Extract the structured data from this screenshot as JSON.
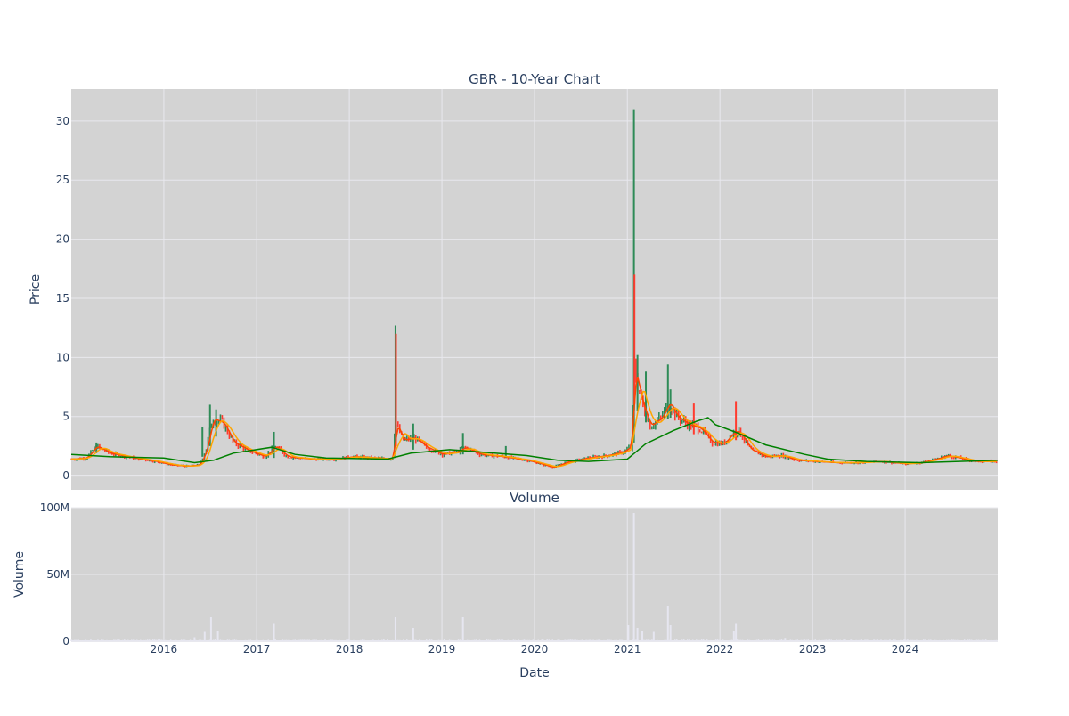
{
  "chart_data": [
    {
      "type": "candlestick",
      "title": "GBR - 10-Year Chart",
      "ylabel": "Price",
      "xlabel": "",
      "xlim": [
        "2015-01-01",
        "2024-12-31"
      ],
      "ylim": [
        -1.2,
        32.7
      ],
      "yticks": [
        0,
        5,
        10,
        15,
        20,
        25,
        30
      ],
      "grid": true,
      "colors": {
        "up": "#2e8b57",
        "down": "#ff3b2f",
        "ma_fast": "#ff4500",
        "ma_mid": "#ffa500",
        "ma_slow": "#008000",
        "background": "#d3d3d3",
        "grid": "#e8e8ee"
      },
      "series": [
        {
          "price_path": [
            [
              "2015-01-01",
              1.4
            ],
            [
              "2015-03-01",
              1.5
            ],
            [
              "2015-04-10",
              2.5
            ],
            [
              "2015-06-01",
              1.9
            ],
            [
              "2015-09-01",
              1.5
            ],
            [
              "2015-12-01",
              1.2
            ],
            [
              "2016-02-01",
              0.9
            ],
            [
              "2016-04-01",
              0.8
            ],
            [
              "2016-05-20",
              0.9
            ],
            [
              "2016-06-15",
              2.2
            ],
            [
              "2016-07-10",
              4.8
            ],
            [
              "2016-08-20",
              4.5
            ],
            [
              "2016-10-01",
              2.8
            ],
            [
              "2016-12-01",
              2.1
            ],
            [
              "2017-02-01",
              1.6
            ],
            [
              "2017-03-15",
              2.5
            ],
            [
              "2017-05-01",
              1.6
            ],
            [
              "2017-08-01",
              1.4
            ],
            [
              "2017-11-01",
              1.4
            ],
            [
              "2018-01-15",
              1.6
            ],
            [
              "2018-04-01",
              1.5
            ],
            [
              "2018-06-20",
              1.4
            ],
            [
              "2018-07-01",
              4.5
            ],
            [
              "2018-08-01",
              3.0
            ],
            [
              "2018-09-15",
              3.2
            ],
            [
              "2018-11-01",
              2.4
            ],
            [
              "2019-01-01",
              1.8
            ],
            [
              "2019-03-01",
              2.0
            ],
            [
              "2019-04-01",
              2.4
            ],
            [
              "2019-06-01",
              1.8
            ],
            [
              "2019-09-01",
              1.6
            ],
            [
              "2019-12-01",
              1.3
            ],
            [
              "2020-03-15",
              0.7
            ],
            [
              "2020-05-01",
              1.1
            ],
            [
              "2020-08-01",
              1.5
            ],
            [
              "2020-10-15",
              1.7
            ],
            [
              "2020-12-15",
              2.0
            ],
            [
              "2021-01-15",
              2.5
            ],
            [
              "2021-01-28",
              9.0
            ],
            [
              "2021-02-10",
              7.8
            ],
            [
              "2021-03-01",
              6.0
            ],
            [
              "2021-04-01",
              4.2
            ],
            [
              "2021-05-15",
              4.9
            ],
            [
              "2021-06-15",
              6.2
            ],
            [
              "2021-07-15",
              5.0
            ],
            [
              "2021-09-01",
              4.3
            ],
            [
              "2021-10-15",
              4.0
            ],
            [
              "2021-12-01",
              2.8
            ],
            [
              "2022-01-15",
              2.7
            ],
            [
              "2022-02-20",
              3.6
            ],
            [
              "2022-03-15",
              3.8
            ],
            [
              "2022-05-01",
              2.2
            ],
            [
              "2022-07-01",
              1.6
            ],
            [
              "2022-09-01",
              1.7
            ],
            [
              "2022-11-01",
              1.3
            ],
            [
              "2023-01-15",
              1.2
            ],
            [
              "2023-04-01",
              1.1
            ],
            [
              "2023-07-01",
              1.1
            ],
            [
              "2023-10-01",
              1.2
            ],
            [
              "2024-01-01",
              1.0
            ],
            [
              "2024-03-01",
              1.1
            ],
            [
              "2024-05-01",
              1.4
            ],
            [
              "2024-06-15",
              1.7
            ],
            [
              "2024-08-01",
              1.5
            ],
            [
              "2024-10-01",
              1.2
            ],
            [
              "2024-12-31",
              1.2
            ]
          ],
          "spikes": [
            {
              "date": "2015-04-10",
              "high": 2.8,
              "low": 1.9,
              "direction": "up"
            },
            {
              "date": "2016-06-01",
              "high": 4.1,
              "low": 1.6,
              "direction": "up"
            },
            {
              "date": "2016-07-01",
              "high": 6.0,
              "low": 2.5,
              "direction": "up"
            },
            {
              "date": "2016-07-25",
              "high": 5.6,
              "low": 3.3,
              "direction": "up"
            },
            {
              "date": "2017-03-10",
              "high": 3.7,
              "low": 1.5,
              "direction": "up"
            },
            {
              "date": "2018-07-02",
              "high": 12.7,
              "low": 3.5,
              "direction": "up"
            },
            {
              "date": "2018-07-04",
              "high": 12.0,
              "low": 2.5,
              "direction": "down"
            },
            {
              "date": "2018-09-10",
              "high": 4.4,
              "low": 2.2,
              "direction": "up"
            },
            {
              "date": "2019-03-25",
              "high": 3.6,
              "low": 1.8,
              "direction": "up"
            },
            {
              "date": "2019-09-10",
              "high": 2.5,
              "low": 1.5,
              "direction": "up"
            },
            {
              "date": "2021-01-27",
              "high": 31.0,
              "low": 2.8,
              "direction": "up"
            },
            {
              "date": "2021-01-29",
              "high": 17.0,
              "low": 6.0,
              "direction": "down"
            },
            {
              "date": "2021-02-10",
              "high": 10.2,
              "low": 5.5,
              "direction": "up"
            },
            {
              "date": "2021-03-15",
              "high": 8.8,
              "low": 4.5,
              "direction": "up"
            },
            {
              "date": "2021-06-10",
              "high": 9.4,
              "low": 4.8,
              "direction": "up"
            },
            {
              "date": "2021-06-20",
              "high": 7.3,
              "low": 4.9,
              "direction": "up"
            },
            {
              "date": "2021-09-20",
              "high": 6.1,
              "low": 3.5,
              "direction": "down"
            },
            {
              "date": "2022-03-05",
              "high": 6.3,
              "low": 3.0,
              "direction": "down"
            }
          ],
          "ma_slow": [
            [
              "2015-01-01",
              1.8
            ],
            [
              "2015-06-01",
              1.6
            ],
            [
              "2016-01-01",
              1.5
            ],
            [
              "2016-05-01",
              1.1
            ],
            [
              "2016-07-15",
              1.3
            ],
            [
              "2016-10-01",
              1.9
            ],
            [
              "2017-03-01",
              2.4
            ],
            [
              "2017-06-01",
              1.8
            ],
            [
              "2017-10-01",
              1.5
            ],
            [
              "2018-06-01",
              1.4
            ],
            [
              "2018-09-01",
              1.9
            ],
            [
              "2019-02-01",
              2.2
            ],
            [
              "2019-06-01",
              2.0
            ],
            [
              "2019-12-01",
              1.7
            ],
            [
              "2020-04-01",
              1.3
            ],
            [
              "2020-08-01",
              1.2
            ],
            [
              "2021-01-01",
              1.4
            ],
            [
              "2021-03-15",
              2.7
            ],
            [
              "2021-07-01",
              3.8
            ],
            [
              "2021-10-01",
              4.6
            ],
            [
              "2021-11-15",
              4.9
            ],
            [
              "2021-12-15",
              4.3
            ],
            [
              "2022-03-01",
              3.7
            ],
            [
              "2022-07-01",
              2.6
            ],
            [
              "2022-12-01",
              1.8
            ],
            [
              "2023-03-01",
              1.4
            ],
            [
              "2023-08-01",
              1.2
            ],
            [
              "2024-03-01",
              1.1
            ],
            [
              "2024-12-31",
              1.3
            ]
          ]
        }
      ]
    },
    {
      "type": "bar",
      "title": "Volume",
      "ylabel": "Volume",
      "xlabel": "Date",
      "ylim": [
        0,
        100000000
      ],
      "yticks": [
        0,
        50000000,
        100000000
      ],
      "ytick_labels": [
        "0",
        "50M",
        "100M"
      ],
      "xticks": [
        "2016-01-01",
        "2017-01-01",
        "2018-01-01",
        "2019-01-01",
        "2020-01-01",
        "2021-01-01",
        "2022-01-01",
        "2023-01-01",
        "2024-01-01"
      ],
      "xtick_labels": [
        "2016",
        "2017",
        "2018",
        "2019",
        "2020",
        "2021",
        "2022",
        "2023",
        "2024"
      ],
      "grid": true,
      "bar_color": "#e6e6f0",
      "x": [
        "2016-05-01",
        "2016-06-10",
        "2016-07-05",
        "2016-08-01",
        "2017-03-10",
        "2018-07-02",
        "2018-09-10",
        "2019-03-25",
        "2021-01-05",
        "2021-01-27",
        "2021-02-10",
        "2021-03-01",
        "2021-04-15",
        "2021-06-10",
        "2021-06-20",
        "2022-02-25",
        "2022-03-05",
        "2022-09-15"
      ],
      "values": [
        3000000,
        7000000,
        18000000,
        8000000,
        13000000,
        18000000,
        10000000,
        18000000,
        12000000,
        96000000,
        10000000,
        8000000,
        7000000,
        26000000,
        12000000,
        8000000,
        13000000,
        2500000
      ]
    }
  ]
}
